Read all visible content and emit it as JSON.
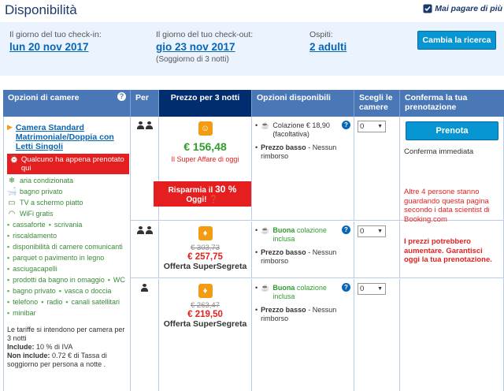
{
  "header": {
    "title": "Disponibilità",
    "no_pay_label": "Mai pagare di più"
  },
  "search": {
    "checkin_label": "Il giorno del tuo check-in:",
    "checkin_value": "lun 20 nov 2017",
    "checkout_label": "Il giorno del tuo check-out:",
    "checkout_value": "gio 23 nov 2017",
    "stay_note": "(Soggiorno di 3 notti)",
    "guests_label": "Ospiti:",
    "guests_value": "2 adulti",
    "change_button": "Cambia la ricerca"
  },
  "table_headers": {
    "room_options": "Opzioni di camere",
    "per": "Per",
    "price": "Prezzo per 3 notti",
    "options": "Opzioni disponibili",
    "choose": "Scegli le camere",
    "confirm": "Conferma la tua prenotazione"
  },
  "room": {
    "name": "Camera Standard Matrimoniale/Doppia con Letti Singoli",
    "alert": "Qualcuno ha appena prenotato qui",
    "facilities_icons": [
      {
        "icon": "snowflake-icon",
        "label": "aria condizionata"
      },
      {
        "icon": "bathtub-icon",
        "label": "bagno privato"
      },
      {
        "icon": "tv-icon",
        "label": "TV a schermo piatto"
      },
      {
        "icon": "wifi-icon",
        "label": "WiFi gratis"
      }
    ],
    "facilities_list": [
      [
        "cassaforte",
        "scrivania"
      ],
      [
        "riscaldamento"
      ],
      [
        "disponibilità di camere comunicanti"
      ],
      [
        "parquet o pavimento in legno"
      ],
      [
        "asciugacapelli"
      ],
      [
        "prodotti da bagno in omaggio",
        "WC"
      ],
      [
        "bagno privato",
        "vasca o doccia"
      ],
      [
        "telefono",
        "radio",
        "canali satellitari"
      ],
      [
        "minibar"
      ]
    ],
    "tax_note": "Le tariffe si intendono per camera per 3 notti",
    "include_label": "Include:",
    "include_text": "10 % di IVA",
    "not_include_label": "Non include:",
    "not_include_text": "0.72 € di Tassa di soggiorno per persona a notte ."
  },
  "rows": [
    {
      "price": "€ 156,48",
      "super_deal": "Il Super Affare di oggi",
      "save_prefix": "Risparmia il",
      "save_pct": "30 %",
      "save_suffix": "Oggi!",
      "breakfast_lead": "",
      "breakfast": "Colazione € 18,90 (facoltativa)",
      "low_price": "Prezzo basso",
      "no_refund": "- Nessun rimborso",
      "select_value": "0"
    },
    {
      "old_price": "€ 303,73",
      "price": "€ 257,75",
      "offer": "Offerta SuperSegreta",
      "breakfast_lead": "Buona",
      "breakfast": "colazione inclusa",
      "low_price": "Prezzo basso",
      "no_refund": "- Nessun rimborso",
      "select_value": "0"
    },
    {
      "old_price": "€ 263,47",
      "price": "€ 219,50",
      "offer": "Offerta SuperSegreta",
      "breakfast_lead": "Buona",
      "breakfast": "colazione inclusa",
      "low_price": "Prezzo basso",
      "no_refund": "- Nessun rimborso",
      "select_value": "0"
    }
  ],
  "confirm": {
    "button": "Prenota",
    "immediate": "Conferma immediata",
    "seen_note": "Altre 4 persone stanno guardando questa pagina secondo i data scientist di Booking.com",
    "warning": "I prezzi potrebbero aumentare. Garantisci oggi la tua prenotazione."
  }
}
